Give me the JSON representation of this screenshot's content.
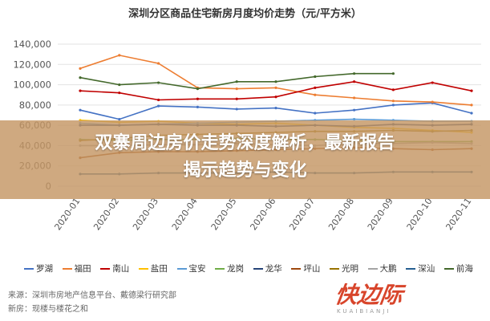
{
  "title": "深圳分区商品住宅新房月度均价走势（元/平方米）",
  "banner": {
    "line1": "双寨周边房价走势深度解析，最新报告",
    "line2": "揭示趋势与变化"
  },
  "sources": {
    "line1": "来源：深圳市房地产信息平台、戴德梁行研究部",
    "line2": "新房：现楼与楼花之和"
  },
  "logo": {
    "text": "快边际",
    "sub": "KUAIBIANJI"
  },
  "chart_data": {
    "type": "line",
    "x": [
      "2020-01",
      "2020-02",
      "2020-03",
      "2020-04",
      "2020-05",
      "2020-06",
      "2020-07",
      "2020-08",
      "2020-09",
      "2020-10",
      "2020-11"
    ],
    "ylim": [
      0,
      140000
    ],
    "yticks": [
      0,
      20000,
      40000,
      60000,
      80000,
      100000,
      120000,
      140000
    ],
    "ytick_labels": [
      "0",
      "20,000",
      "40,000",
      "60,000",
      "80,000",
      "100,000",
      "120,000",
      "140,000"
    ],
    "grid": true,
    "legend_position": "bottom",
    "series": [
      {
        "name": "罗湖",
        "color": "#4472c4",
        "values": [
          75000,
          66000,
          79000,
          78000,
          76000,
          77000,
          72000,
          75000,
          80000,
          82000,
          72000
        ]
      },
      {
        "name": "福田",
        "color": "#ed7d31",
        "values": [
          116000,
          129000,
          121000,
          97000,
          96000,
          97000,
          90000,
          87000,
          84000,
          83000,
          80000
        ]
      },
      {
        "name": "南山",
        "color": "#c00000",
        "values": [
          94000,
          92000,
          85000,
          86000,
          86000,
          88000,
          97000,
          103000,
          95000,
          102000,
          94000
        ]
      },
      {
        "name": "盐田",
        "color": "#ffc000",
        "values": [
          65000,
          63000,
          64000,
          62000,
          61000,
          62000,
          60000,
          58000,
          57000,
          55000,
          53000
        ]
      },
      {
        "name": "宝安",
        "color": "#5b9bd5",
        "values": [
          62000,
          60000,
          61000,
          62000,
          63000,
          64000,
          65000,
          66000,
          65000,
          64000,
          64000
        ]
      },
      {
        "name": "龙岗",
        "color": "#70ad47",
        "values": [
          46000,
          45000,
          46000,
          46000,
          47000,
          46000,
          46000,
          45000,
          44000,
          44000,
          44000
        ]
      },
      {
        "name": "龙华",
        "color": "#264478",
        "values": [
          60000,
          60000,
          61000,
          60000,
          60000,
          59000,
          60000,
          59000,
          61000,
          60000,
          61000
        ]
      },
      {
        "name": "坪山",
        "color": "#9e480e",
        "values": [
          28000,
          33000,
          34000,
          34000,
          35000,
          36000,
          37000,
          38000,
          37000,
          36000,
          37000
        ]
      },
      {
        "name": "光明",
        "color": "#997300",
        "values": [
          45000,
          47000,
          50000,
          51000,
          52000,
          53000,
          54000,
          54000,
          55000,
          54000,
          55000
        ]
      },
      {
        "name": "大鹏",
        "color": "#a5a5a5",
        "values": [
          40000,
          40000,
          41000,
          41000,
          42000,
          41000,
          40000,
          42000,
          42000,
          43000,
          42000
        ]
      },
      {
        "name": "深汕",
        "color": "#255e91",
        "values": [
          12000,
          12000,
          13000,
          13000,
          13000,
          14000,
          13000,
          13000,
          14000,
          14000,
          14000
        ]
      },
      {
        "name": "前海",
        "color": "#43682b",
        "values": [
          107000,
          100000,
          102000,
          96000,
          103000,
          103000,
          108000,
          111000,
          111000,
          null,
          null
        ]
      }
    ]
  }
}
